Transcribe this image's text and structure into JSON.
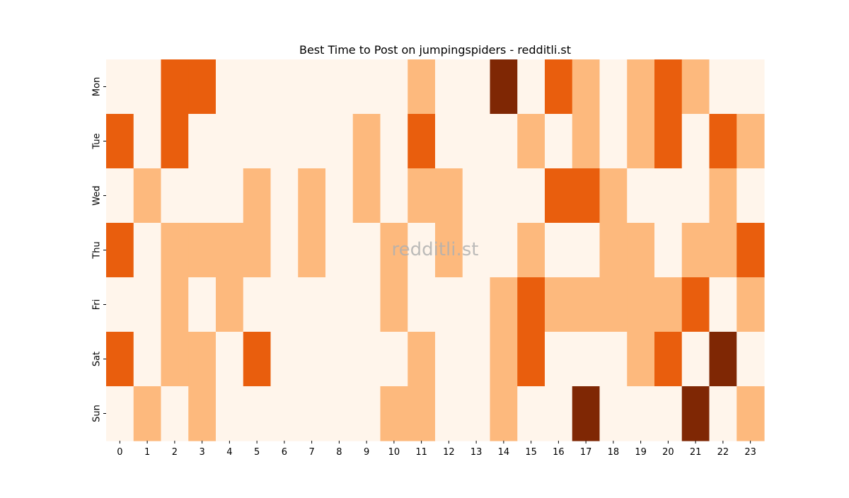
{
  "chart_data": {
    "type": "heatmap",
    "title": "Best Time to Post on jumpingspiders - redditli.st",
    "xlabel": "",
    "ylabel": "",
    "watermark": "redditli.st",
    "x_categories": [
      "0",
      "1",
      "2",
      "3",
      "4",
      "5",
      "6",
      "7",
      "8",
      "9",
      "10",
      "11",
      "12",
      "13",
      "14",
      "15",
      "16",
      "17",
      "18",
      "19",
      "20",
      "21",
      "22",
      "23"
    ],
    "y_categories": [
      "Mon",
      "Tue",
      "Wed",
      "Thu",
      "Fri",
      "Sat",
      "Sun"
    ],
    "values": [
      [
        0,
        0,
        2,
        2,
        0,
        0,
        0,
        0,
        0,
        0,
        0,
        1,
        0,
        0,
        3,
        0,
        2,
        1,
        0,
        1,
        2,
        1,
        0,
        0
      ],
      [
        2,
        0,
        2,
        0,
        0,
        0,
        0,
        0,
        0,
        1,
        0,
        2,
        0,
        0,
        0,
        1,
        0,
        1,
        0,
        1,
        2,
        0,
        2,
        1
      ],
      [
        0,
        1,
        0,
        0,
        0,
        1,
        0,
        1,
        0,
        1,
        0,
        1,
        1,
        0,
        0,
        0,
        2,
        2,
        1,
        0,
        0,
        0,
        1,
        0
      ],
      [
        2,
        0,
        1,
        1,
        1,
        1,
        0,
        1,
        0,
        0,
        1,
        0,
        1,
        0,
        0,
        1,
        0,
        0,
        1,
        1,
        0,
        1,
        1,
        2
      ],
      [
        0,
        0,
        1,
        0,
        1,
        0,
        0,
        0,
        0,
        0,
        1,
        0,
        0,
        0,
        1,
        2,
        1,
        1,
        1,
        1,
        1,
        2,
        0,
        1
      ],
      [
        2,
        0,
        1,
        1,
        0,
        2,
        0,
        0,
        0,
        0,
        0,
        1,
        0,
        0,
        1,
        2,
        0,
        0,
        0,
        1,
        2,
        0,
        3,
        0
      ],
      [
        0,
        1,
        0,
        1,
        0,
        0,
        0,
        0,
        0,
        0,
        1,
        1,
        0,
        0,
        1,
        0,
        0,
        3,
        0,
        0,
        0,
        3,
        0,
        1
      ]
    ],
    "colormap": [
      "#fff5eb",
      "#fdb97d",
      "#e95e0d",
      "#7f2704"
    ],
    "colorbar": false,
    "grid": false
  }
}
